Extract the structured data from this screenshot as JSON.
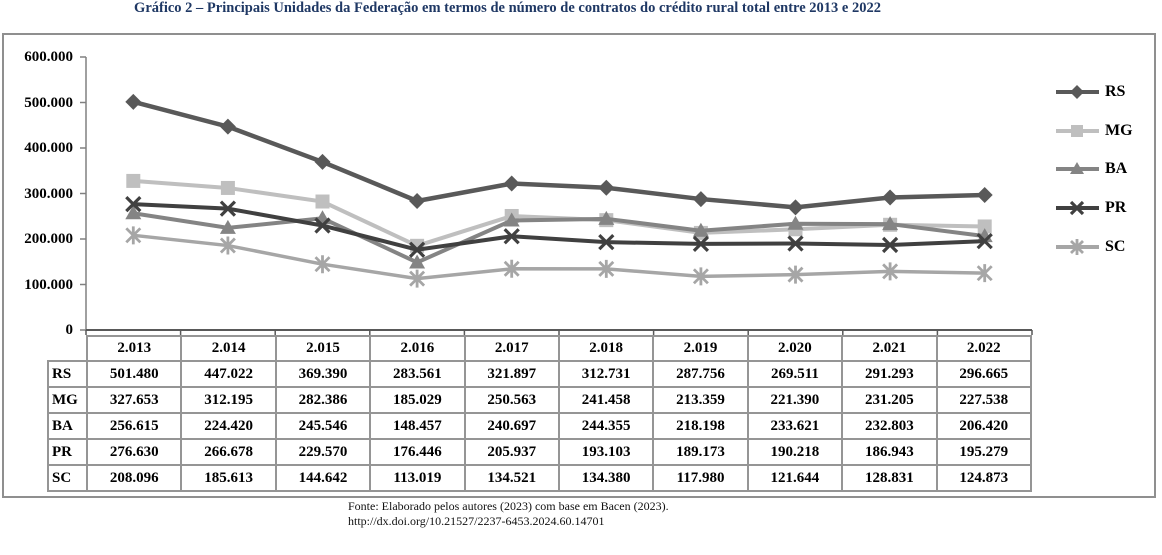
{
  "title": "Gráfico 2 – Principais Unidades da Federação em termos de número de contratos do crédito rural total entre 2013 e 2022",
  "footer": {
    "source": "Fonte: Elaborado pelos autores (2023) com base em Bacen (2023).",
    "doi": "http://dx.doi.org/10.21527/2237-6453.2024.60.14701"
  },
  "chart_data": {
    "type": "line",
    "title": "Gráfico 2 – Principais Unidades da Federação em termos de número de contratos do crédito rural total entre 2013 e 2022",
    "categories": [
      "2.013",
      "2.014",
      "2.015",
      "2.016",
      "2.017",
      "2.018",
      "2.019",
      "2.020",
      "2.021",
      "2.022"
    ],
    "series": [
      {
        "name": "RS",
        "marker": "diamond",
        "color": "#595959",
        "line_width": 4.5,
        "values": [
          501480,
          447022,
          369390,
          283561,
          321897,
          312731,
          287756,
          269511,
          291293,
          296665
        ]
      },
      {
        "name": "MG",
        "marker": "square",
        "color": "#bfbfbf",
        "line_width": 4,
        "values": [
          327653,
          312195,
          282386,
          185029,
          250563,
          241458,
          213359,
          221390,
          231205,
          227538
        ]
      },
      {
        "name": "BA",
        "marker": "triangle",
        "color": "#848484",
        "line_width": 4,
        "values": [
          256615,
          224420,
          245546,
          148457,
          240697,
          244355,
          218198,
          233621,
          232803,
          206420
        ]
      },
      {
        "name": "PR",
        "marker": "x",
        "color": "#404040",
        "line_width": 4,
        "values": [
          276630,
          266678,
          229570,
          176446,
          205937,
          193103,
          189173,
          190218,
          186943,
          195279
        ]
      },
      {
        "name": "SC",
        "marker": "asterisk",
        "color": "#a6a6a6",
        "line_width": 3.5,
        "values": [
          208096,
          185613,
          144642,
          113019,
          134521,
          134380,
          117980,
          121644,
          128831,
          124873
        ]
      }
    ],
    "ylim": [
      0,
      600000
    ],
    "ytick_labels_top_down": [
      "600.000",
      "500.000",
      "400.000",
      "300.000",
      "200.000",
      "100.000",
      "0"
    ],
    "xlabel": "",
    "ylabel": "",
    "grid": false,
    "legend_position": "right",
    "axis_color": "#808080",
    "x_axis_color": "#595959"
  }
}
